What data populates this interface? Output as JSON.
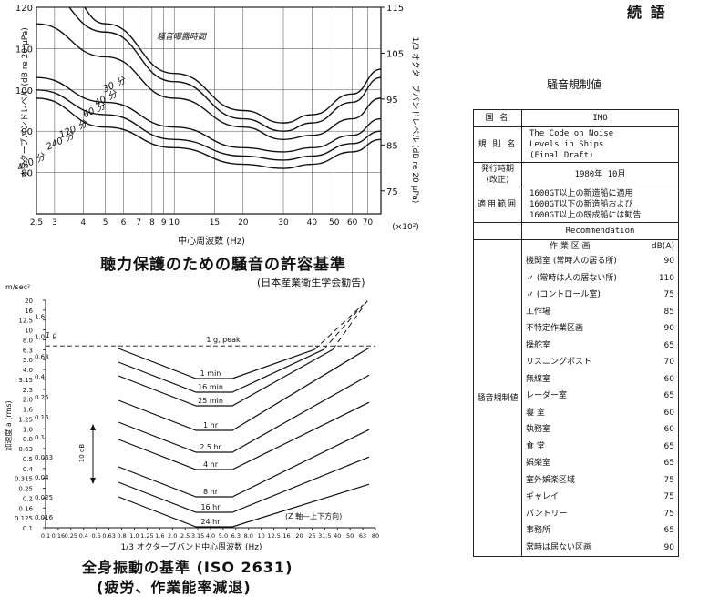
{
  "top_corner": "続 語",
  "chart1": {
    "title": "聴力保護のための騒音の許容基準",
    "source": "(日本産業衛生学会勧告)",
    "xlabel": "中心周波数 (Hz)",
    "ylabel_left": "オクターブバンドレベル (dB re 20 μPa)",
    "ylabel_right": "1/3 オクターブバンドレベル (dB re 20 μPa)",
    "legend_title": "騒音曝露時間",
    "x_unit": "(×10²)"
  },
  "chart2": {
    "title": "全身振動の基準 (ISO 2631)",
    "subtitle": "(疲労、作業能率減退)",
    "xlabel": "1/3 オクターブバンド中心周波数 (Hz)",
    "ylabel": "加速度 a (rms)",
    "yunit": "m/sec²",
    "g_label": "1 g",
    "note": "(Z 軸—上下方向)",
    "scale_label": "10 dB"
  },
  "chart_data": [
    {
      "type": "line",
      "title": "聴力保護のための騒音の許容基準",
      "xlabel": "中心周波数 (Hz)",
      "ylabel": "オクターブバンドレベル (dB re 20 μPa)",
      "xscale": "log",
      "xlim": [
        250,
        8000
      ],
      "ylim": [
        70,
        120
      ],
      "y2lim": [
        70,
        115
      ],
      "y2label": "1/3 オクターブバンドレベル (dB re 20 μPa)",
      "grid": true,
      "x_ticks": [
        250,
        300,
        400,
        500,
        600,
        700,
        800,
        900,
        1000,
        1500,
        2000,
        3000,
        4000,
        5000,
        6000,
        7000
      ],
      "x_tick_labels": [
        "2.5",
        "3",
        "4",
        "5",
        "6",
        "7",
        "8",
        "9",
        "10",
        "15",
        "20",
        "30",
        "40",
        "50",
        "60",
        "70"
      ],
      "y_ticks": [
        80,
        90,
        100,
        110,
        120
      ],
      "y_tick_labels": [
        "80",
        "90",
        "100",
        "110",
        "120"
      ],
      "y2_ticks": [
        75,
        85,
        95,
        105,
        115
      ],
      "y2_tick_labels": [
        "75",
        "85",
        "95",
        "105",
        "115"
      ],
      "legend_title": "騒音曝露時間",
      "series": [
        {
          "name": "30 分",
          "x": [
            330,
            500,
            1000,
            2000,
            3000,
            4000,
            6000,
            8000
          ],
          "y": [
            124,
            116,
            104,
            95,
            92,
            94,
            99,
            105
          ]
        },
        {
          "name": "40 分",
          "x": [
            250,
            500,
            1000,
            2000,
            3000,
            4000,
            6000,
            8000
          ],
          "y": [
            125,
            114,
            102,
            93,
            90,
            92,
            97,
            103
          ]
        },
        {
          "name": "60 分",
          "x": [
            250,
            500,
            1000,
            2000,
            3000,
            4000,
            6000,
            8000
          ],
          "y": [
            116,
            108,
            98,
            91,
            88,
            89,
            93,
            98
          ]
        },
        {
          "name": "120 分",
          "x": [
            250,
            500,
            1000,
            2000,
            3000,
            4000,
            6000,
            8000
          ],
          "y": [
            103,
            97,
            91,
            86,
            85,
            86,
            89,
            93
          ]
        },
        {
          "name": "240 分",
          "x": [
            250,
            500,
            1000,
            2000,
            3000,
            4000,
            6000,
            8000
          ],
          "y": [
            100,
            94,
            88,
            84,
            83,
            84,
            87,
            90
          ]
        },
        {
          "name": "480 分",
          "x": [
            250,
            500,
            1000,
            2000,
            3000,
            4000,
            6000,
            8000
          ],
          "y": [
            98,
            91,
            86,
            82,
            81,
            82,
            85,
            88
          ]
        }
      ]
    },
    {
      "type": "line",
      "title": "全身振動の基準 (ISO 2631)",
      "subtitle": "(疲労、作業能率減退)",
      "xlabel": "1/3 オクターブバンド中心周波数 (Hz)",
      "ylabel": "加速度 a (rms)",
      "xscale": "log",
      "yscale": "log",
      "xlim": [
        0.1,
        80
      ],
      "ylim": [
        0.1,
        20
      ],
      "x_tick_labels": [
        "0.1",
        "0.16",
        "0.25",
        "0.4",
        "0.5",
        "0.63",
        "0.8",
        "1.0",
        "1.25",
        "1.6",
        "2.0",
        "2.5",
        "3.15",
        "4.0",
        "5.0",
        "6.3",
        "8.0",
        "10",
        "12.5",
        "16",
        "20",
        "25",
        "31.5",
        "40",
        "50",
        "63",
        "80"
      ],
      "y_tick_labels": [
        "0.1",
        "0.125",
        "0.16",
        "0.2",
        "0.25",
        "0.315",
        "0.4",
        "0.5",
        "0.63",
        "0.8",
        "1.0",
        "1.25",
        "1.6",
        "2.0",
        "2.5",
        "3.15",
        "4.0",
        "5.0",
        "6.3",
        "8.0",
        "10",
        "12.5",
        "16",
        "20"
      ],
      "y_tick_labels_g": [
        "0.016",
        "0.025",
        "0.04",
        "0.063",
        "0.1",
        "0.16",
        "0.25",
        "0.4",
        "0.63",
        "1.0",
        "1.6"
      ],
      "reference_line": {
        "label": "1 g, peak",
        "y": 6.9
      },
      "note": "(Z 軸—上下方向)",
      "series": [
        {
          "name": "1 min",
          "x": [
            1,
            4,
            8,
            80
          ],
          "y": [
            5.6,
            2.8,
            2.8,
            28
          ]
        },
        {
          "name": "16 min",
          "x": [
            1,
            4,
            8,
            80
          ],
          "y": [
            4.25,
            2.12,
            2.12,
            21.2
          ]
        },
        {
          "name": "25 min",
          "x": [
            1,
            4,
            8,
            80
          ],
          "y": [
            3.55,
            1.8,
            1.8,
            18
          ]
        },
        {
          "name": "1 hr",
          "x": [
            1,
            4,
            8,
            80
          ],
          "y": [
            2.36,
            1.18,
            1.18,
            11.8
          ]
        },
        {
          "name": "2.5 hr",
          "x": [
            1,
            4,
            8,
            80
          ],
          "y": [
            1.4,
            0.71,
            0.71,
            7.1
          ]
        },
        {
          "name": "4 hr",
          "x": [
            1,
            4,
            8,
            80
          ],
          "y": [
            1.06,
            0.53,
            0.53,
            5.3
          ]
        },
        {
          "name": "8 hr",
          "x": [
            1,
            4,
            8,
            80
          ],
          "y": [
            0.63,
            0.315,
            0.315,
            3.15
          ]
        },
        {
          "name": "16 hr",
          "x": [
            1,
            4,
            8,
            80
          ],
          "y": [
            0.383,
            0.19,
            0.19,
            1.9
          ]
        },
        {
          "name": "24 hr",
          "x": [
            1,
            4,
            8,
            80
          ],
          "y": [
            0.28,
            0.14,
            0.14,
            1.4
          ]
        }
      ]
    },
    {
      "type": "table",
      "title": "騒音規制値",
      "rows": [
        {
          "label": "国 名",
          "value": "IMO"
        },
        {
          "label": "規 則 名",
          "value": [
            "The Code on Noise",
            "Levels in Ships",
            "(Final Draft)"
          ]
        },
        {
          "label": "発行時期(改正)",
          "value": "1980年 10月"
        },
        {
          "label": "適用範囲",
          "value": [
            "1600GT以上の新造船に適用",
            "1600GT以下の新造船および",
            "1600GT以上の既成船には勧告"
          ]
        },
        {
          "label": "",
          "value": "Recommendation"
        }
      ],
      "section_label": "騒音規制値",
      "columns": [
        "作 業 区 画",
        "dB(A)"
      ],
      "items": [
        {
          "name": "機関室 (常時人の居る所)",
          "db": "90"
        },
        {
          "name": "〃 (常時は人の居ない所)",
          "db": "110"
        },
        {
          "name": "〃 (コントロール室)",
          "db": "75"
        },
        {
          "name": "工作場",
          "db": "85"
        },
        {
          "name": "不特定作業区画",
          "db": "90"
        },
        {
          "name": "操舵室",
          "db": "65"
        },
        {
          "name": "リスニングポスト",
          "db": "70"
        },
        {
          "name": "無線室",
          "db": "60"
        },
        {
          "name": "レーダー室",
          "db": "65"
        },
        {
          "name": "寝 室",
          "db": "60"
        },
        {
          "name": "執務室",
          "db": "60"
        },
        {
          "name": "食 堂",
          "db": "65"
        },
        {
          "name": "娯楽室",
          "db": "65"
        },
        {
          "name": "室外娯楽区域",
          "db": "75"
        },
        {
          "name": "ギャレイ",
          "db": "75"
        },
        {
          "name": "パントリー",
          "db": "75"
        },
        {
          "name": "事務所",
          "db": "65"
        },
        {
          "name": "常時は居ない区画",
          "db": "90"
        }
      ]
    }
  ]
}
